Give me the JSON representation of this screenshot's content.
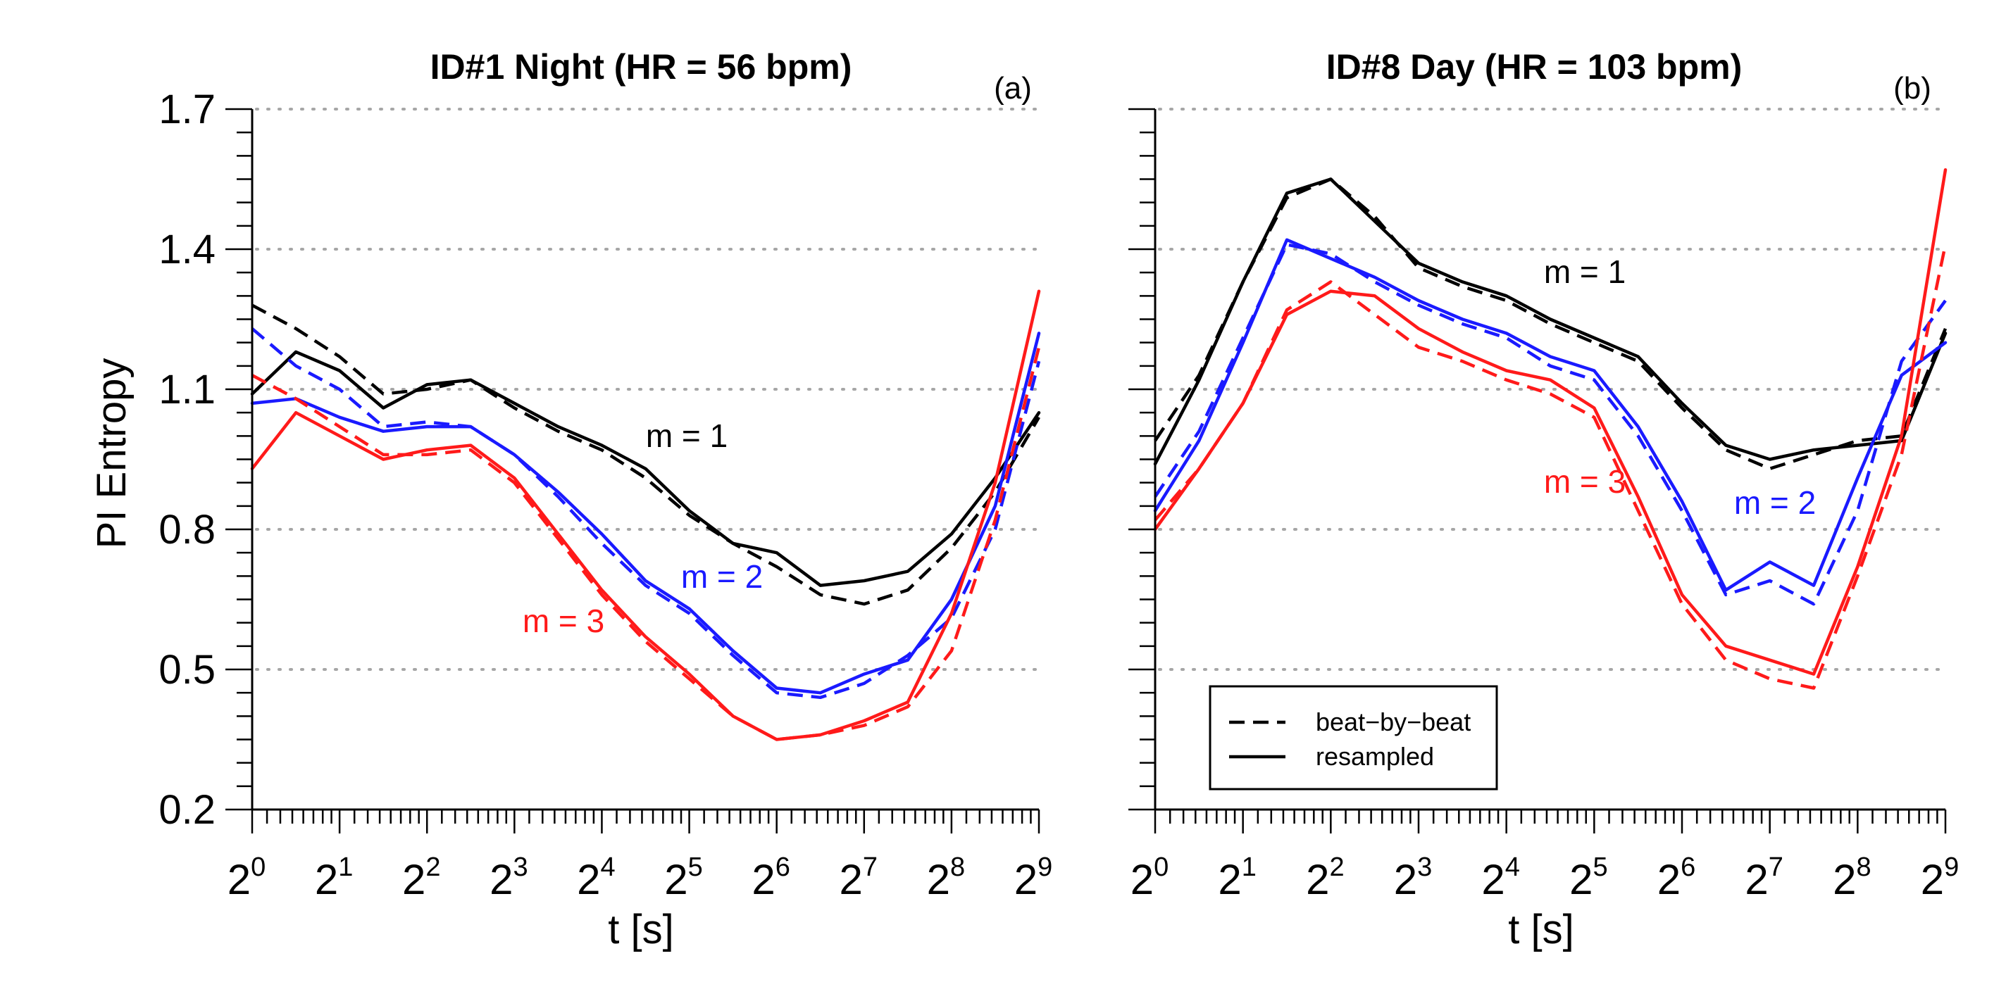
{
  "chart_data": [
    {
      "type": "line",
      "title": "ID#1 Night (HR = 56 bpm)",
      "panel_tag": "(a)",
      "xlabel": "t [s]",
      "ylabel": "PI Entropy",
      "x_scale": "log2",
      "xlim_log2": [
        0,
        9
      ],
      "x_tick_labels": [
        {
          "base": "2",
          "exp": "0"
        },
        {
          "base": "2",
          "exp": "1"
        },
        {
          "base": "2",
          "exp": "2"
        },
        {
          "base": "2",
          "exp": "3"
        },
        {
          "base": "2",
          "exp": "4"
        },
        {
          "base": "2",
          "exp": "5"
        },
        {
          "base": "2",
          "exp": "6"
        },
        {
          "base": "2",
          "exp": "7"
        },
        {
          "base": "2",
          "exp": "8"
        },
        {
          "base": "2",
          "exp": "9"
        }
      ],
      "ylim": [
        0.2,
        1.7
      ],
      "y_tick_labels": [
        "0.2",
        "0.5",
        "0.8",
        "1.1",
        "1.4",
        "1.7"
      ],
      "grid": "horizontal dotted",
      "annotations": [
        {
          "text": "m = 1",
          "color": "#000000"
        },
        {
          "text": "m = 2",
          "color": "#1a1aff"
        },
        {
          "text": "m = 3",
          "color": "#ff1a1a"
        }
      ],
      "series": [
        {
          "name": "m = 1 beat-by-beat",
          "color": "#000000",
          "style": "dashed",
          "x": [
            0,
            0.5,
            1,
            1.5,
            2,
            2.5,
            3,
            3.5,
            4,
            4.5,
            5,
            5.5,
            6,
            6.5,
            7,
            7.5,
            8,
            8.5,
            9
          ],
          "y": [
            1.28,
            1.23,
            1.17,
            1.09,
            1.1,
            1.12,
            1.06,
            1.01,
            0.97,
            0.91,
            0.83,
            0.77,
            0.72,
            0.66,
            0.64,
            0.67,
            0.76,
            0.88,
            1.04
          ]
        },
        {
          "name": "m = 1 resampled",
          "color": "#000000",
          "style": "solid",
          "x": [
            0,
            0.5,
            1,
            1.5,
            2,
            2.5,
            3,
            3.5,
            4,
            4.5,
            5,
            5.5,
            6,
            6.5,
            7,
            7.5,
            8,
            8.5,
            9
          ],
          "y": [
            1.09,
            1.18,
            1.14,
            1.06,
            1.11,
            1.12,
            1.07,
            1.02,
            0.98,
            0.93,
            0.84,
            0.77,
            0.75,
            0.68,
            0.69,
            0.71,
            0.79,
            0.91,
            1.05
          ]
        },
        {
          "name": "m = 2 beat-by-beat",
          "color": "#1a1aff",
          "style": "dashed",
          "x": [
            0,
            0.5,
            1,
            1.5,
            2,
            2.5,
            3,
            3.5,
            4,
            4.5,
            5,
            5.5,
            6,
            6.5,
            7,
            7.5,
            8,
            8.5,
            9
          ],
          "y": [
            1.23,
            1.15,
            1.1,
            1.02,
            1.03,
            1.02,
            0.96,
            0.87,
            0.77,
            0.68,
            0.62,
            0.53,
            0.45,
            0.44,
            0.47,
            0.53,
            0.61,
            0.8,
            1.16
          ]
        },
        {
          "name": "m = 2 resampled",
          "color": "#1a1aff",
          "style": "solid",
          "x": [
            0,
            0.5,
            1,
            1.5,
            2,
            2.5,
            3,
            3.5,
            4,
            4.5,
            5,
            5.5,
            6,
            6.5,
            7,
            7.5,
            8,
            8.5,
            9
          ],
          "y": [
            1.07,
            1.08,
            1.04,
            1.01,
            1.02,
            1.02,
            0.96,
            0.88,
            0.79,
            0.69,
            0.63,
            0.54,
            0.46,
            0.45,
            0.49,
            0.52,
            0.65,
            0.85,
            1.22
          ]
        },
        {
          "name": "m = 3 beat-by-beat",
          "color": "#ff1a1a",
          "style": "dashed",
          "x": [
            0,
            0.5,
            1,
            1.5,
            2,
            2.5,
            3,
            3.5,
            4,
            4.5,
            5,
            5.5,
            6,
            6.5,
            7,
            7.5,
            8,
            8.5,
            9
          ],
          "y": [
            1.13,
            1.08,
            1.02,
            0.96,
            0.96,
            0.97,
            0.9,
            0.78,
            0.66,
            0.56,
            0.48,
            0.4,
            0.35,
            0.36,
            0.38,
            0.42,
            0.54,
            0.82,
            1.19
          ]
        },
        {
          "name": "m = 3 resampled",
          "color": "#ff1a1a",
          "style": "solid",
          "x": [
            0,
            0.5,
            1,
            1.5,
            2,
            2.5,
            3,
            3.5,
            4,
            4.5,
            5,
            5.5,
            6,
            6.5,
            7,
            7.5,
            8,
            8.5,
            9
          ],
          "y": [
            0.93,
            1.05,
            1.0,
            0.95,
            0.97,
            0.98,
            0.91,
            0.79,
            0.67,
            0.57,
            0.49,
            0.4,
            0.35,
            0.36,
            0.39,
            0.43,
            0.62,
            0.9,
            1.31
          ]
        }
      ]
    },
    {
      "type": "line",
      "title": "ID#8 Day (HR = 103 bpm)",
      "panel_tag": "(b)",
      "xlabel": "t [s]",
      "x_scale": "log2",
      "xlim_log2": [
        0,
        9
      ],
      "x_tick_labels": [
        {
          "base": "2",
          "exp": "0"
        },
        {
          "base": "2",
          "exp": "1"
        },
        {
          "base": "2",
          "exp": "2"
        },
        {
          "base": "2",
          "exp": "3"
        },
        {
          "base": "2",
          "exp": "4"
        },
        {
          "base": "2",
          "exp": "5"
        },
        {
          "base": "2",
          "exp": "6"
        },
        {
          "base": "2",
          "exp": "7"
        },
        {
          "base": "2",
          "exp": "8"
        },
        {
          "base": "2",
          "exp": "9"
        }
      ],
      "ylim": [
        0.2,
        1.7
      ],
      "grid": "horizontal dotted",
      "legend": {
        "placement": "bottom-left",
        "entries": [
          {
            "label": "beat−by−beat",
            "style": "dashed"
          },
          {
            "label": "resampled",
            "style": "solid"
          }
        ]
      },
      "annotations": [
        {
          "text": "m = 1",
          "color": "#000000"
        },
        {
          "text": "m = 2",
          "color": "#1a1aff"
        },
        {
          "text": "m = 3",
          "color": "#ff1a1a"
        }
      ],
      "series": [
        {
          "name": "m = 1 beat-by-beat",
          "color": "#000000",
          "style": "dashed",
          "x": [
            0,
            0.5,
            1,
            1.5,
            2,
            2.5,
            3,
            3.5,
            4,
            4.5,
            5,
            5.5,
            6,
            6.5,
            7,
            7.5,
            8,
            8.5,
            9
          ],
          "y": [
            0.99,
            1.13,
            1.33,
            1.51,
            1.55,
            1.47,
            1.36,
            1.32,
            1.29,
            1.24,
            1.2,
            1.16,
            1.06,
            0.97,
            0.93,
            0.96,
            0.99,
            1.0,
            1.23
          ]
        },
        {
          "name": "m = 1 resampled",
          "color": "#000000",
          "style": "solid",
          "x": [
            0,
            0.5,
            1,
            1.5,
            2,
            2.5,
            3,
            3.5,
            4,
            4.5,
            5,
            5.5,
            6,
            6.5,
            7,
            7.5,
            8,
            8.5,
            9
          ],
          "y": [
            0.94,
            1.12,
            1.33,
            1.52,
            1.55,
            1.46,
            1.37,
            1.33,
            1.3,
            1.25,
            1.21,
            1.17,
            1.07,
            0.98,
            0.95,
            0.97,
            0.98,
            0.99,
            1.22
          ]
        },
        {
          "name": "m = 2 beat-by-beat",
          "color": "#1a1aff",
          "style": "dashed",
          "x": [
            0,
            0.5,
            1,
            1.5,
            2,
            2.5,
            3,
            3.5,
            4,
            4.5,
            5,
            5.5,
            6,
            6.5,
            7,
            7.5,
            8,
            8.5,
            9
          ],
          "y": [
            0.87,
            1.01,
            1.21,
            1.41,
            1.39,
            1.33,
            1.28,
            1.24,
            1.21,
            1.15,
            1.12,
            1.0,
            0.84,
            0.66,
            0.69,
            0.64,
            0.84,
            1.16,
            1.29
          ]
        },
        {
          "name": "m = 2 resampled",
          "color": "#1a1aff",
          "style": "solid",
          "x": [
            0,
            0.5,
            1,
            1.5,
            2,
            2.5,
            3,
            3.5,
            4,
            4.5,
            5,
            5.5,
            6,
            6.5,
            7,
            7.5,
            8,
            8.5,
            9
          ],
          "y": [
            0.84,
            0.99,
            1.2,
            1.42,
            1.38,
            1.34,
            1.29,
            1.25,
            1.22,
            1.17,
            1.14,
            1.02,
            0.86,
            0.67,
            0.73,
            0.68,
            0.91,
            1.13,
            1.2
          ]
        },
        {
          "name": "m = 3 beat-by-beat",
          "color": "#ff1a1a",
          "style": "dashed",
          "x": [
            0,
            0.5,
            1,
            1.5,
            2,
            2.5,
            3,
            3.5,
            4,
            4.5,
            5,
            5.5,
            6,
            6.5,
            7,
            7.5,
            8,
            8.5,
            9
          ],
          "y": [
            0.82,
            0.93,
            1.07,
            1.27,
            1.33,
            1.26,
            1.19,
            1.16,
            1.12,
            1.09,
            1.04,
            0.84,
            0.64,
            0.52,
            0.48,
            0.46,
            0.7,
            0.96,
            1.41
          ]
        },
        {
          "name": "m = 3 resampled",
          "color": "#ff1a1a",
          "style": "solid",
          "x": [
            0,
            0.5,
            1,
            1.5,
            2,
            2.5,
            3,
            3.5,
            4,
            4.5,
            5,
            5.5,
            6,
            6.5,
            7,
            7.5,
            8,
            8.5,
            9
          ],
          "y": [
            0.8,
            0.93,
            1.07,
            1.26,
            1.31,
            1.3,
            1.23,
            1.18,
            1.14,
            1.12,
            1.06,
            0.87,
            0.66,
            0.55,
            0.52,
            0.49,
            0.72,
            1.0,
            1.57
          ]
        }
      ]
    }
  ]
}
